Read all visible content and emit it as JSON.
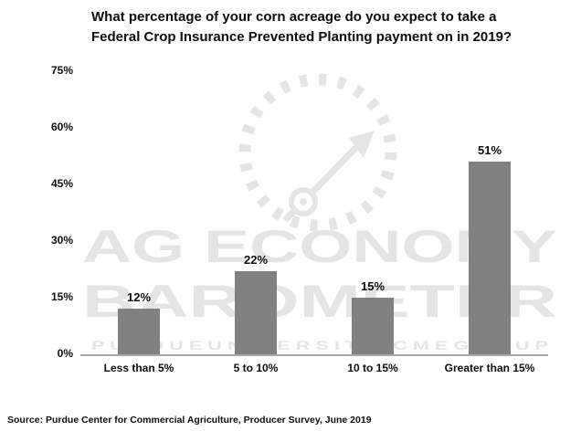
{
  "title": "What percentage of your corn acreage do you expect to take a Federal Crop Insurance Prevented Planting payment on in 2019?",
  "source": "Source: Purdue Center for Commercial Agriculture, Producer Survey, June 2019",
  "watermark": {
    "line1": "AG ECONOMY",
    "line2": "BAROMETER",
    "line3": "P U R D U E   U N I V E R S I T Y   ·   C M E   G R O U P"
  },
  "chart_data": {
    "type": "bar",
    "title": "What percentage of your corn acreage do you expect to take a Federal Crop Insurance Prevented Planting payment on in 2019?",
    "categories": [
      "Less than 5%",
      "5 to 10%",
      "10 to 15%",
      "Greater than 15%"
    ],
    "values": [
      12,
      22,
      15,
      51
    ],
    "data_labels": [
      "12%",
      "22%",
      "15%",
      "51%"
    ],
    "xlabel": "",
    "ylabel": "",
    "ylim": [
      0,
      75
    ],
    "yticks": [
      "0%",
      "15%",
      "30%",
      "45%",
      "60%",
      "75%"
    ],
    "bar_color": "#808080",
    "label_color": "#0d0d0d",
    "axis_color": "#a6a6a6",
    "grid": false,
    "legend": "none"
  }
}
